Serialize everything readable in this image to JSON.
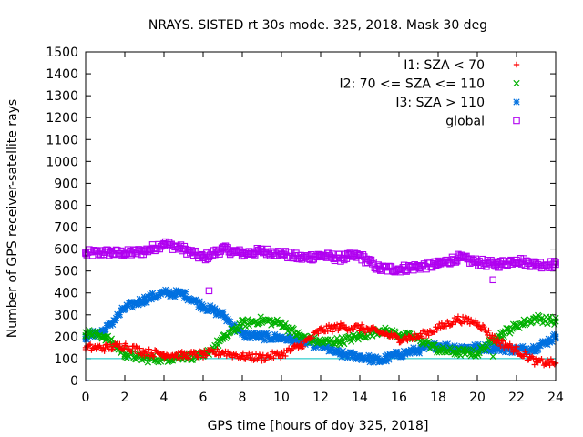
{
  "chart_data": {
    "type": "scatter",
    "title": "NRAYS. SISTED rt 30s mode. 325, 2018. Mask 30 deg",
    "xlabel": "GPS time [hours of doy 325, 2018]",
    "ylabel": "Number of GPS receiver-satellite rays",
    "xlim": [
      0,
      24
    ],
    "ylim": [
      0,
      1500
    ],
    "xticks": [
      0,
      2,
      4,
      6,
      8,
      10,
      12,
      14,
      16,
      18,
      20,
      22,
      24
    ],
    "yticks": [
      0,
      100,
      200,
      300,
      400,
      500,
      600,
      700,
      800,
      900,
      1000,
      1100,
      1200,
      1300,
      1400,
      1500
    ],
    "grid": false,
    "legend_position": "top-right",
    "reference_line": {
      "y": 100,
      "color": "#00c0c0"
    },
    "series": [
      {
        "name": "I1: SZA < 70",
        "marker": "plus",
        "color": "#ff0000",
        "x": [
          0,
          1,
          2,
          3,
          4,
          5,
          6,
          7,
          8,
          9,
          10,
          11,
          12,
          13,
          14,
          15,
          16,
          17,
          18,
          19,
          20,
          21,
          22,
          23,
          24
        ],
        "y": [
          150,
          150,
          160,
          130,
          120,
          115,
          120,
          130,
          110,
          105,
          120,
          160,
          230,
          245,
          240,
          220,
          190,
          200,
          240,
          280,
          265,
          180,
          140,
          85,
          80
        ]
      },
      {
        "name": "I2: 70 <= SZA <= 110",
        "marker": "x",
        "color": "#00b000",
        "x": [
          0,
          1,
          2,
          3,
          4,
          5,
          6,
          7,
          8,
          9,
          10,
          11,
          12,
          13,
          14,
          15,
          16,
          17,
          18,
          19,
          20,
          21,
          22,
          23,
          24
        ],
        "y": [
          220,
          200,
          120,
          100,
          100,
          110,
          110,
          190,
          260,
          275,
          260,
          200,
          175,
          180,
          200,
          230,
          210,
          190,
          140,
          130,
          125,
          200,
          250,
          285,
          270
        ]
      },
      {
        "name": "I3: SZA > 110",
        "marker": "asterisk",
        "color": "#0070e0",
        "x": [
          0,
          1,
          2,
          3,
          4,
          5,
          6,
          7,
          8,
          9,
          10,
          11,
          12,
          13,
          14,
          15,
          16,
          17,
          18,
          19,
          20,
          21,
          22,
          23,
          24
        ],
        "y": [
          200,
          230,
          330,
          370,
          400,
          395,
          340,
          300,
          210,
          200,
          195,
          180,
          160,
          120,
          110,
          90,
          120,
          140,
          160,
          150,
          150,
          150,
          140,
          150,
          200
        ]
      },
      {
        "name": "global",
        "marker": "square",
        "color": "#b000f0",
        "x": [
          0,
          1,
          2,
          3,
          4,
          5,
          6,
          7,
          8,
          9,
          10,
          11,
          12,
          13,
          14,
          15,
          16,
          17,
          18,
          19,
          20,
          21,
          22,
          23,
          24
        ],
        "y": [
          580,
          585,
          580,
          590,
          625,
          600,
          560,
          600,
          580,
          590,
          580,
          560,
          570,
          560,
          570,
          510,
          510,
          520,
          530,
          560,
          540,
          530,
          550,
          530,
          530
        ]
      }
    ],
    "outliers": [
      {
        "series": "global",
        "x": 6.3,
        "y": 410
      },
      {
        "series": "global",
        "x": 20.8,
        "y": 460
      },
      {
        "series": "I2: 70 <= SZA <= 110",
        "x": 20.8,
        "y": 110
      }
    ]
  }
}
